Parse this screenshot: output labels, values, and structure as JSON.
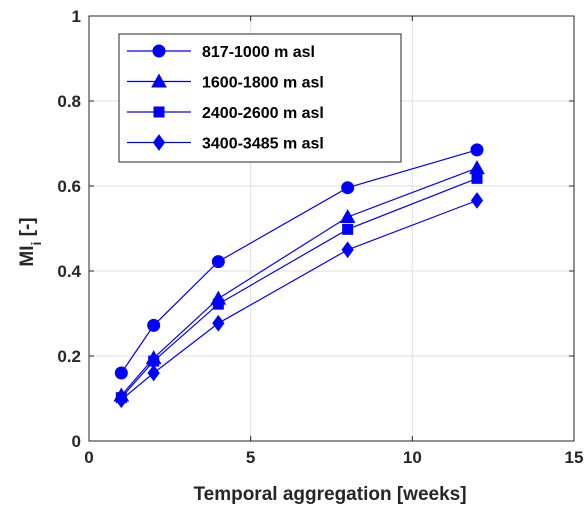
{
  "chart_data": {
    "type": "line",
    "title": "",
    "xlabel": "Temporal aggregation [weeks]",
    "ylabel_main": "MI",
    "ylabel_sub": "i",
    "ylabel_tail": " [-]",
    "xlim": [
      0,
      15
    ],
    "ylim": [
      0,
      1
    ],
    "xticks": [
      0,
      5,
      10,
      15
    ],
    "yticks": [
      0,
      0.2,
      0.4,
      0.6,
      0.8,
      1
    ],
    "xtick_labels": [
      "0",
      "5",
      "10",
      "15"
    ],
    "ytick_labels": [
      "0",
      "0.2",
      "0.4",
      "0.6",
      "0.8",
      "1"
    ],
    "grid": true,
    "legend_position": "top-left",
    "series_color": "#0000ff",
    "x": [
      1,
      2,
      4,
      8,
      12
    ],
    "series": [
      {
        "name": "817-1000 m asl",
        "marker": "circle",
        "values": [
          0.16,
          0.272,
          0.422,
          0.596,
          0.685
        ]
      },
      {
        "name": "1600-1800 m asl",
        "marker": "triangle",
        "values": [
          0.107,
          0.195,
          0.335,
          0.527,
          0.642
        ]
      },
      {
        "name": "2400-2600 m asl",
        "marker": "square",
        "values": [
          0.102,
          0.188,
          0.322,
          0.498,
          0.618
        ]
      },
      {
        "name": "3400-3485 m asl",
        "marker": "diamond",
        "values": [
          0.097,
          0.16,
          0.277,
          0.45,
          0.566
        ]
      }
    ]
  }
}
